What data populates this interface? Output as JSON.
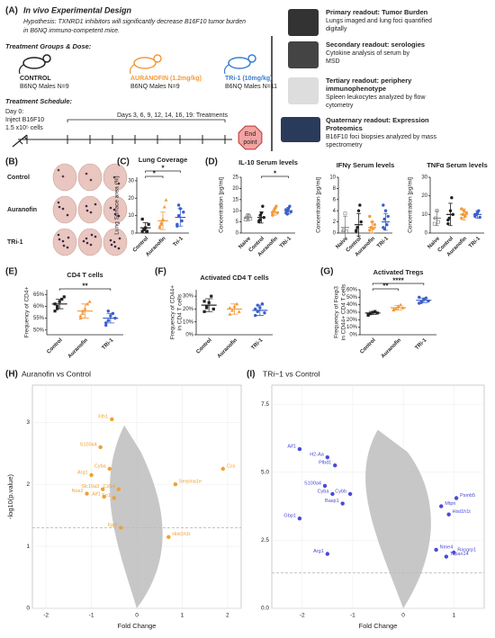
{
  "A": {
    "label": "(A)",
    "title": "In vivo Experimental Design",
    "hypothesis": [
      "Hypothesis: TXNRD1 inhibitors will significantly decrease B16F10 tumor burden",
      "in B6NQ immuno-competent mice."
    ],
    "groups_heading": "Treatment Groups & Dose:",
    "groups": [
      {
        "name": "CONTROL",
        "detail": "B6NQ Males N=9",
        "color": "#222222"
      },
      {
        "name": "AURANOFIN (1.2mg/kg)",
        "detail": "B6NQ Males N=9",
        "color": "#f39a3a"
      },
      {
        "name": "TRi-1 (10mg/kg)",
        "detail": "B6NQ Males N=11",
        "color": "#3a7fd0"
      }
    ],
    "schedule_heading": "Treatment Schedule:",
    "day0": [
      "Day 0:",
      "Inject B16F10",
      "1.5 x10⁵ cells"
    ],
    "treatments": "Days 3, 6, 9, 12, 14, 16, 19: Treatments",
    "endpoint": [
      "End",
      "point"
    ],
    "readouts": [
      {
        "title": [
          "Primary readout: Tumor Burden"
        ],
        "text": [
          "Lungs imaged and lung foci quantified",
          "digitally"
        ]
      },
      {
        "title": [
          "Secondary readout: serologies"
        ],
        "text": [
          "Cytokine analysis of serum by",
          "MSD"
        ]
      },
      {
        "title": [
          "Tertiary readout: periphery",
          "immunophenotype"
        ],
        "text": [
          "Spleen leukocytes analyzed by flow",
          "cytometry"
        ]
      },
      {
        "title": [
          "Quaternary readout: Expression",
          "Proteomics"
        ],
        "text": [
          "B16F10 foci biopsies analyzed by mass",
          "spectrometry"
        ]
      }
    ]
  },
  "B": {
    "label": "(B)",
    "rows": [
      "Control",
      "Auranofin",
      "TRi-1"
    ]
  },
  "D_label": "(D)",
  "dotplots": {
    "C": {
      "label": "(C)",
      "title": "Lung Coverage",
      "ylabel": [
        "Lung Surface area (%)"
      ],
      "ylim": [
        0,
        32
      ],
      "yticks": [
        0,
        10,
        20,
        30
      ],
      "categories": [
        "Control",
        "Auranofin",
        "Tri-1"
      ],
      "colors": [
        "#222222",
        "#f39a3a",
        "#3a5fc9"
      ],
      "means": [
        3,
        7,
        9
      ],
      "sd": [
        3,
        5,
        5
      ],
      "points": [
        [
          1,
          2,
          3,
          1,
          5,
          8,
          2
        ],
        [
          3,
          5,
          8,
          15,
          19,
          4,
          6
        ],
        [
          4,
          10,
          14,
          7,
          12,
          5,
          16
        ]
      ],
      "significance": [
        "*",
        "*"
      ]
    },
    "D1": {
      "title": "IL-10 Serum levels",
      "ylabel": [
        "Concentration [pg/ml]"
      ],
      "ylim": [
        0,
        25
      ],
      "yticks": [
        0,
        5,
        10,
        15,
        20,
        25
      ],
      "categories": [
        "Naive",
        "Control",
        "Auranofin",
        "TRi-1"
      ],
      "colors": [
        "#888888",
        "#222222",
        "#f39a3a",
        "#3a5fc9"
      ],
      "means": [
        7,
        7,
        9.5,
        10
      ],
      "sd": [
        1.5,
        2.5,
        1.5,
        1.5
      ],
      "points": [
        [
          6,
          7,
          8,
          7.5,
          6.5
        ],
        [
          5,
          6,
          9,
          12,
          7,
          5.5,
          8
        ],
        [
          8,
          10,
          11,
          12,
          9,
          9
        ],
        [
          9,
          10,
          11,
          12,
          9.5,
          10.5,
          8.5
        ]
      ],
      "significance": [
        "*"
      ]
    },
    "D2": {
      "title": "IFNγ Serum levels",
      "ylabel": [
        "Concentration [pg/ml]"
      ],
      "ylim": [
        0,
        10
      ],
      "yticks": [
        0,
        2,
        4,
        6,
        8,
        10
      ],
      "categories": [
        "Naive",
        "Control",
        "Auranofin",
        "TRi-1"
      ],
      "colors": [
        "#888888",
        "#222222",
        "#f39a3a",
        "#3a5fc9"
      ],
      "means": [
        1,
        1.5,
        1,
        2
      ],
      "sd": [
        2,
        2,
        1,
        1.5
      ],
      "points": [
        [
          0.2,
          0.5,
          3.5,
          0.3
        ],
        [
          0.5,
          1,
          4,
          5,
          2,
          0.3,
          1
        ],
        [
          0.5,
          1,
          2,
          0.8,
          1.5,
          3
        ],
        [
          1,
          2.5,
          4,
          1.5,
          3,
          5,
          0.8
        ]
      ],
      "significance": []
    },
    "D3": {
      "title": "TNFα Serum levels",
      "ylabel": [
        "Concentration [pg/ml]"
      ],
      "ylim": [
        0,
        30
      ],
      "yticks": [
        0,
        10,
        20,
        30
      ],
      "categories": [
        "Naive",
        "Control",
        "Auranofin",
        "TRi-1"
      ],
      "colors": [
        "#888888",
        "#222222",
        "#f39a3a",
        "#3a5fc9"
      ],
      "means": [
        8,
        10,
        10,
        10
      ],
      "sd": [
        4,
        6,
        3,
        2
      ],
      "points": [
        [
          5,
          8,
          12,
          6
        ],
        [
          5,
          8,
          12,
          19,
          10,
          7
        ],
        [
          8,
          10,
          12,
          9,
          11,
          13
        ],
        [
          9,
          10,
          11,
          12,
          8.5,
          10
        ]
      ],
      "significance": []
    },
    "E": {
      "label": "(E)",
      "title": "CD4 T cells",
      "ylabel": [
        "Frequency of CD4+"
      ],
      "ylim": [
        48,
        67
      ],
      "yticks": [
        {
          "value": 50,
          "label": "50%"
        },
        {
          "value": 55,
          "label": "55%"
        },
        {
          "value": 60,
          "label": "60%"
        },
        {
          "value": 65,
          "label": "65%"
        }
      ],
      "categories": [
        "Control",
        "Auranofin",
        "TRi-1"
      ],
      "colors": [
        "#222222",
        "#f39a3a",
        "#3a5fc9"
      ],
      "means": [
        61,
        58,
        55
      ],
      "sd": [
        2,
        3,
        2
      ],
      "points": [
        [
          58,
          60,
          62,
          63,
          64,
          61,
          59
        ],
        [
          55,
          57,
          59,
          61,
          62,
          56,
          58
        ],
        [
          53,
          54,
          56,
          57,
          55,
          52,
          58
        ]
      ],
      "significance": [
        "**"
      ]
    },
    "F": {
      "label": "(F)",
      "title": "Activated CD4 T cells",
      "ylabel": [
        "Frequency of CD44+",
        "in CD4 T cells"
      ],
      "ylim": [
        0,
        35
      ],
      "yticks": [
        {
          "value": 0,
          "label": "0%"
        },
        {
          "value": 10,
          "label": "10%"
        },
        {
          "value": 20,
          "label": "20%"
        },
        {
          "value": 30,
          "label": "30%"
        }
      ],
      "categories": [
        "Control",
        "Auranofin",
        "TRi-1"
      ],
      "colors": [
        "#222222",
        "#f39a3a",
        "#3a5fc9"
      ],
      "means": [
        23,
        20,
        19
      ],
      "sd": [
        5,
        4,
        4
      ],
      "points": [
        [
          18,
          22,
          25,
          30,
          20,
          26,
          21
        ],
        [
          16,
          19,
          22,
          24,
          18,
          21
        ],
        [
          15,
          18,
          21,
          24,
          17,
          20,
          23
        ]
      ],
      "significance": []
    },
    "G": {
      "label": "(G)",
      "title": "Activated Tregs",
      "ylabel": [
        "Frequency of Foxp3",
        "in CD44+ CD4 T cells"
      ],
      "ylim": [
        0,
        60
      ],
      "yticks": [
        {
          "value": 0,
          "label": "0%"
        },
        {
          "value": 10,
          "label": "10%"
        },
        {
          "value": 20,
          "label": "20%"
        },
        {
          "value": 30,
          "label": "30%"
        },
        {
          "value": 40,
          "label": "40%"
        },
        {
          "value": 50,
          "label": "50%"
        },
        {
          "value": 60,
          "label": "60%"
        }
      ],
      "categories": [
        "Control",
        "Auranofin",
        "TRi-1"
      ],
      "colors": [
        "#222222",
        "#f39a3a",
        "#3a5fc9"
      ],
      "means": [
        29,
        36,
        46
      ],
      "sd": [
        2,
        3,
        3
      ],
      "points": [
        [
          27,
          28,
          30,
          31,
          29,
          26
        ],
        [
          33,
          35,
          38,
          40,
          36,
          34
        ],
        [
          42,
          44,
          47,
          49,
          45,
          50,
          43
        ]
      ],
      "significance": [
        "**",
        "****"
      ]
    }
  },
  "volcano": {
    "H": {
      "label": "(H)",
      "title": "Auranofin vs Control",
      "xlabel": "Fold Change",
      "ylabel": "-log10(p.value)",
      "xlim": [
        -2.3,
        2.3
      ],
      "xticks": [
        -2,
        -1,
        0,
        1,
        2
      ],
      "ylim": [
        0,
        3.6
      ],
      "yticks": [
        0,
        1,
        2,
        3
      ],
      "threshold": 1.3,
      "color": "#f0a030",
      "genes": [
        {
          "name": "Fth1",
          "x": -0.55,
          "y": 3.05
        },
        {
          "name": "S100a4",
          "x": -0.8,
          "y": 2.6
        },
        {
          "name": "Cyba",
          "x": -0.6,
          "y": 2.25
        },
        {
          "name": "Arg1",
          "x": -1.0,
          "y": 2.15
        },
        {
          "name": "Nos2",
          "x": -1.1,
          "y": 1.85
        },
        {
          "name": "Slc16a3",
          "x": -0.75,
          "y": 1.92
        },
        {
          "name": "Aif1",
          "x": -0.72,
          "y": 1.8
        },
        {
          "name": "Cd14",
          "x": -0.4,
          "y": 1.92
        },
        {
          "name": "Fn1",
          "x": -0.5,
          "y": 1.78
        },
        {
          "name": "Fgl2",
          "x": -0.35,
          "y": 1.3
        },
        {
          "name": "Ccs",
          "x": 1.9,
          "y": 2.25
        },
        {
          "name": "Serpina1e",
          "x": 0.85,
          "y": 2.0
        },
        {
          "name": "Hist1h1t",
          "x": 0.7,
          "y": 1.15
        }
      ]
    },
    "I": {
      "label": "(I)",
      "title": "TRi−1 vs Control",
      "xlabel": "Fold Change",
      "ylabel": "",
      "xlim": [
        -2.6,
        1.6
      ],
      "xticks": [
        -2,
        -1,
        0,
        1
      ],
      "ylim": [
        0,
        8.2
      ],
      "yticks": [
        {
          "value": 0,
          "label": "0.0"
        },
        {
          "value": 2.5,
          "label": "2.5"
        },
        {
          "value": 5,
          "label": "5.0"
        },
        {
          "value": 7.5,
          "label": "7.5"
        }
      ],
      "threshold": 1.3,
      "color": "#4a4ad8",
      "genes": [
        {
          "name": "Aif1",
          "x": -2.05,
          "y": 5.85
        },
        {
          "name": "H2-Aa",
          "x": -1.5,
          "y": 5.55
        },
        {
          "name": "Plbd1",
          "x": -1.35,
          "y": 5.25
        },
        {
          "name": "S100a4",
          "x": -1.55,
          "y": 4.5
        },
        {
          "name": "Cyba",
          "x": -1.4,
          "y": 4.2
        },
        {
          "name": "Cybb",
          "x": -1.05,
          "y": 4.2
        },
        {
          "name": "Basp1",
          "x": -1.2,
          "y": 3.85
        },
        {
          "name": "Gbp1",
          "x": -2.05,
          "y": 3.3
        },
        {
          "name": "Arg1",
          "x": -1.5,
          "y": 2.0
        },
        {
          "name": "Psmb5",
          "x": 1.05,
          "y": 4.05
        },
        {
          "name": "Mtpn",
          "x": 0.75,
          "y": 3.75
        },
        {
          "name": "Hist1h1t",
          "x": 0.9,
          "y": 3.45
        },
        {
          "name": "Nme4",
          "x": 0.65,
          "y": 2.15
        },
        {
          "name": "Rasgrp1",
          "x": 1.0,
          "y": 2.05
        },
        {
          "name": "Tspan14",
          "x": 0.85,
          "y": 1.9
        }
      ]
    }
  }
}
